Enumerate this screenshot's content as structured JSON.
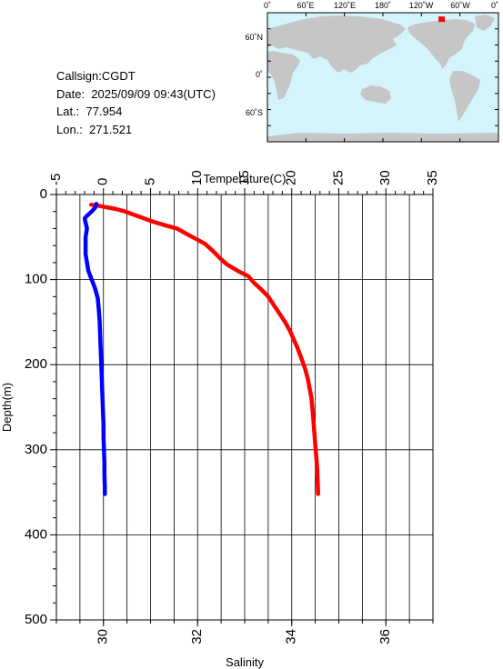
{
  "station": {
    "callsign_label": "Callsign:",
    "callsign": "CGDT",
    "date_label": "Date:",
    "date": "2025/09/09 09:43(UTC)",
    "lat_label": "Lat.:",
    "lat": "77.954",
    "lon_label": "Lon.:",
    "lon": "271.521"
  },
  "map": {
    "lon_ticks": [
      "0˚",
      "60˚E",
      "120˚E",
      "180˚",
      "120˚W",
      "60˚W",
      "0˚"
    ],
    "lat_ticks": [
      "60˚N",
      "0˚",
      "60˚S"
    ],
    "ocean_color": "#d4f4fb",
    "land_color": "#c6c6c6",
    "marker_color": "#ff0000",
    "marker": {
      "lon": 271.521,
      "lat": 77.954
    }
  },
  "chart_data": {
    "type": "line",
    "ylabel": "Depth(m)",
    "ylim": [
      0,
      500
    ],
    "y_ticks": [
      0,
      100,
      200,
      300,
      400,
      500
    ],
    "temperature_axis": {
      "label": "Temperature(C)",
      "range": [
        -5,
        35
      ],
      "ticks": [
        -5,
        0,
        5,
        10,
        15,
        20,
        25,
        30,
        35
      ]
    },
    "salinity_axis": {
      "label": "Salinity",
      "range": [
        29,
        37
      ],
      "ticks": [
        30,
        32,
        34,
        36
      ]
    },
    "grid": true,
    "series": [
      {
        "axis": "temperature",
        "color": "#ff0000",
        "points": [
          [
            -1.3,
            12
          ],
          [
            -0.6,
            13
          ],
          [
            0.3,
            15
          ],
          [
            1.3,
            17
          ],
          [
            2.3,
            20
          ],
          [
            3.3,
            24
          ],
          [
            4.3,
            28
          ],
          [
            5.3,
            32
          ],
          [
            6.5,
            36
          ],
          [
            7.8,
            40
          ],
          [
            8.8,
            46
          ],
          [
            9.8,
            52
          ],
          [
            10.8,
            58
          ],
          [
            11.6,
            66
          ],
          [
            12.3,
            74
          ],
          [
            13.1,
            82
          ],
          [
            14.3,
            90
          ],
          [
            15.4,
            96
          ],
          [
            16.0,
            104
          ],
          [
            16.8,
            112
          ],
          [
            17.5,
            120
          ],
          [
            18.1,
            130
          ],
          [
            18.7,
            140
          ],
          [
            19.3,
            150
          ],
          [
            19.8,
            160
          ],
          [
            20.2,
            170
          ],
          [
            20.6,
            180
          ],
          [
            21.0,
            192
          ],
          [
            21.4,
            204
          ],
          [
            21.7,
            216
          ],
          [
            21.9,
            228
          ],
          [
            22.1,
            240
          ],
          [
            22.2,
            252
          ],
          [
            22.3,
            266
          ],
          [
            22.4,
            280
          ],
          [
            22.5,
            294
          ],
          [
            22.6,
            308
          ],
          [
            22.7,
            322
          ],
          [
            22.75,
            336
          ],
          [
            22.8,
            352
          ]
        ]
      },
      {
        "axis": "salinity",
        "color": "#0000ff",
        "points": [
          [
            29.85,
            11
          ],
          [
            29.83,
            15
          ],
          [
            29.75,
            20
          ],
          [
            29.65,
            25
          ],
          [
            29.6,
            28
          ],
          [
            29.62,
            33
          ],
          [
            29.65,
            40
          ],
          [
            29.62,
            50
          ],
          [
            29.62,
            60
          ],
          [
            29.62,
            70
          ],
          [
            29.65,
            80
          ],
          [
            29.68,
            90
          ],
          [
            29.75,
            100
          ],
          [
            29.82,
            110
          ],
          [
            29.88,
            122
          ],
          [
            29.9,
            135
          ],
          [
            29.92,
            150
          ],
          [
            29.93,
            165
          ],
          [
            29.94,
            180
          ],
          [
            29.95,
            195
          ],
          [
            29.96,
            210
          ],
          [
            29.97,
            225
          ],
          [
            29.98,
            240
          ],
          [
            29.99,
            255
          ],
          [
            30.0,
            270
          ],
          [
            30.0,
            285
          ],
          [
            30.01,
            300
          ],
          [
            30.02,
            315
          ],
          [
            30.02,
            330
          ],
          [
            30.03,
            345
          ],
          [
            30.03,
            352
          ]
        ]
      }
    ]
  }
}
